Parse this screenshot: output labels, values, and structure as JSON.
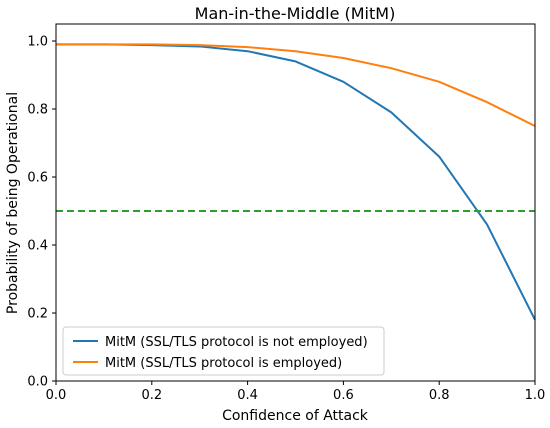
{
  "chart_data": {
    "type": "line",
    "title": "Man-in-the-Middle (MitM)",
    "xlabel": "Confidence of Attack",
    "ylabel": "Probability of being Operational",
    "xlim": [
      0.0,
      1.0
    ],
    "ylim": [
      0.0,
      1.05
    ],
    "xticks": [
      0.0,
      0.2,
      0.4,
      0.6,
      0.8,
      1.0
    ],
    "xtick_labels": [
      "0.0",
      "0.2",
      "0.4",
      "0.6",
      "0.8",
      "1.0"
    ],
    "yticks": [
      0.0,
      0.2,
      0.4,
      0.6,
      0.8,
      1.0
    ],
    "ytick_labels": [
      "0.0",
      "0.2",
      "0.4",
      "0.6",
      "0.8",
      "1.0"
    ],
    "grid": false,
    "legend_position": "lower-left",
    "series": [
      {
        "name": "MitM (SSL/TLS protocol is not employed)",
        "color": "#1f77b4",
        "style": "solid",
        "x": [
          0.0,
          0.1,
          0.2,
          0.3,
          0.4,
          0.5,
          0.6,
          0.7,
          0.8,
          0.9,
          1.0
        ],
        "y": [
          0.99,
          0.99,
          0.988,
          0.984,
          0.97,
          0.94,
          0.88,
          0.79,
          0.66,
          0.46,
          0.18
        ]
      },
      {
        "name": "MitM (SSL/TLS protocol is employed)",
        "color": "#ff7f0e",
        "style": "solid",
        "x": [
          0.0,
          0.1,
          0.2,
          0.3,
          0.4,
          0.5,
          0.6,
          0.7,
          0.8,
          0.9,
          1.0
        ],
        "y": [
          0.99,
          0.99,
          0.99,
          0.988,
          0.982,
          0.97,
          0.95,
          0.92,
          0.88,
          0.82,
          0.75
        ]
      },
      {
        "color": "#2ca02c",
        "style": "dashed",
        "x": [
          0.0,
          1.0
        ],
        "y": [
          0.5,
          0.5
        ]
      }
    ]
  }
}
